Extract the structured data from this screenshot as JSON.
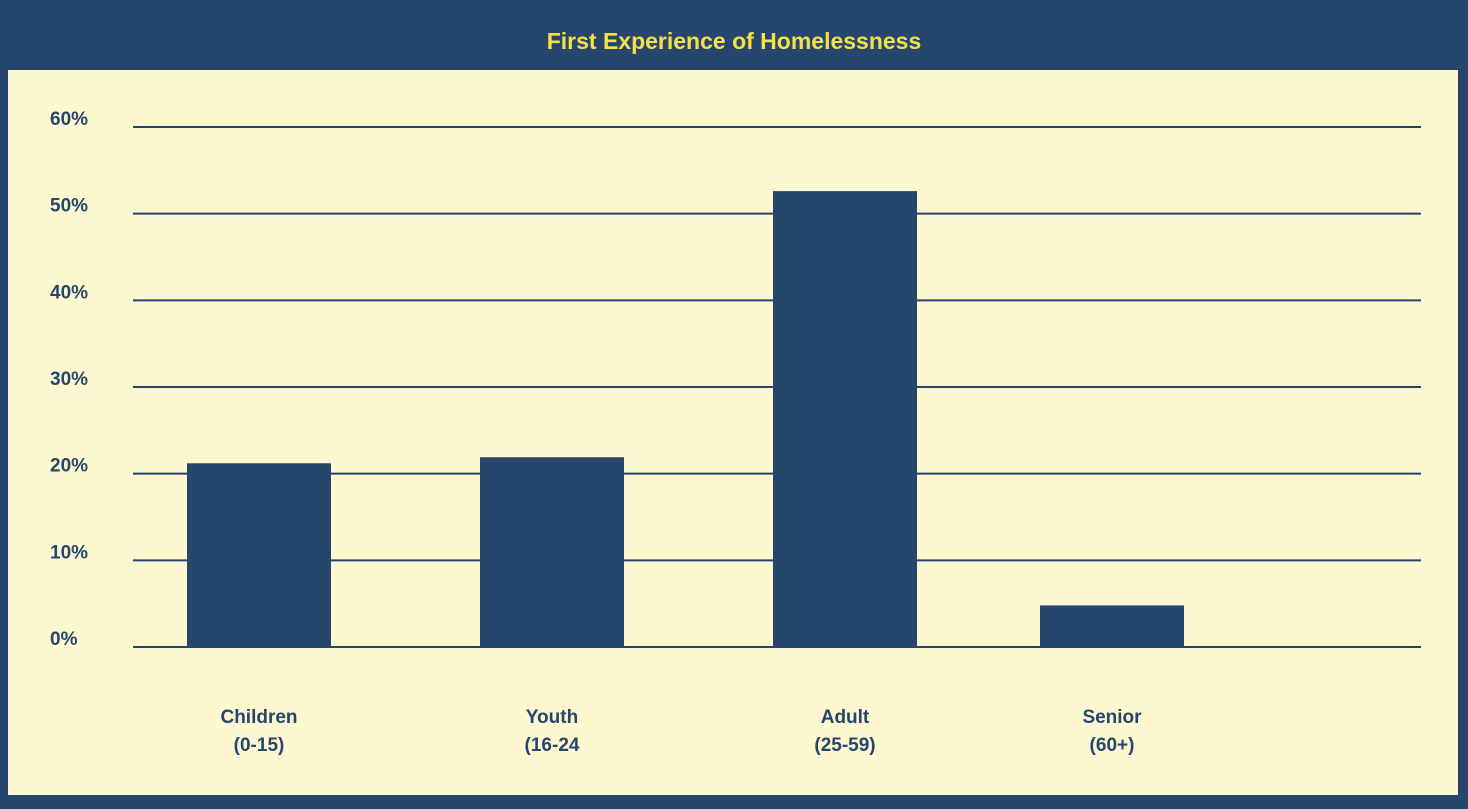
{
  "chart_data": {
    "type": "bar",
    "title": "First Experience of Homelessness",
    "categories": [
      "Children\n(0-15)",
      "Youth\n(16-24",
      "Adult\n(25-59)",
      "Senior\n(60+)"
    ],
    "values": [
      21.2,
      21.9,
      52.6,
      4.8
    ],
    "color": "#26466d",
    "ylim": [
      0,
      60
    ],
    "yticks": [
      {
        "value": 0,
        "label": "0%"
      },
      {
        "value": 10,
        "label": "10%"
      },
      {
        "value": 20,
        "label": "20%"
      },
      {
        "value": 30,
        "label": "30%"
      },
      {
        "value": 40,
        "label": "40%"
      },
      {
        "value": 50,
        "label": "50%"
      },
      {
        "value": 60,
        "label": "60%"
      }
    ],
    "grid": true
  }
}
